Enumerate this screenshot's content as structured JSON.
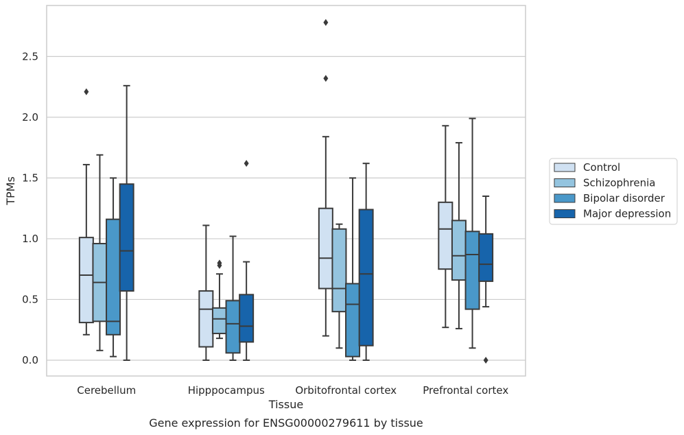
{
  "chart_data": {
    "type": "boxplot",
    "title": "",
    "caption": "Gene expression for ENSG00000279611 by tissue",
    "xlabel": "Tissue",
    "ylabel": "TPMs",
    "ylim": [
      -0.13,
      2.92
    ],
    "yticks": [
      0.0,
      0.5,
      1.0,
      1.5,
      2.0,
      2.5
    ],
    "ytick_labels": [
      "0.0",
      "0.5",
      "1.0",
      "1.5",
      "2.0",
      "2.5"
    ],
    "grid": true,
    "legend_position": "right",
    "categories": [
      "Cerebellum",
      "Hipppocampus",
      "Orbitofrontal cortex",
      "Prefrontal cortex"
    ],
    "series": [
      {
        "name": "Control",
        "color": "#d0e1f2",
        "boxes": [
          {
            "whislo": 0.21,
            "q1": 0.31,
            "med": 0.7,
            "q3": 1.01,
            "whishi": 1.61,
            "fliers": [
              2.21
            ]
          },
          {
            "whislo": 0.0,
            "q1": 0.11,
            "med": 0.42,
            "q3": 0.57,
            "whishi": 1.11,
            "fliers": []
          },
          {
            "whislo": 0.2,
            "q1": 0.59,
            "med": 0.84,
            "q3": 1.25,
            "whishi": 1.84,
            "fliers": [
              2.32,
              2.78
            ]
          },
          {
            "whislo": 0.27,
            "q1": 0.75,
            "med": 1.08,
            "q3": 1.3,
            "whishi": 1.93,
            "fliers": []
          }
        ]
      },
      {
        "name": "Schizophrenia",
        "color": "#94c4df",
        "boxes": [
          {
            "whislo": 0.08,
            "q1": 0.32,
            "med": 0.64,
            "q3": 0.96,
            "whishi": 1.69,
            "fliers": []
          },
          {
            "whislo": 0.18,
            "q1": 0.22,
            "med": 0.34,
            "q3": 0.43,
            "whishi": 0.71,
            "fliers": [
              0.78,
              0.8
            ]
          },
          {
            "whislo": 0.1,
            "q1": 0.4,
            "med": 0.59,
            "q3": 1.08,
            "whishi": 1.12,
            "fliers": []
          },
          {
            "whislo": 0.26,
            "q1": 0.66,
            "med": 0.86,
            "q3": 1.15,
            "whishi": 1.79,
            "fliers": []
          }
        ]
      },
      {
        "name": "Bipolar disorder",
        "color": "#4a98c9",
        "boxes": [
          {
            "whislo": 0.03,
            "q1": 0.21,
            "med": 0.32,
            "q3": 1.16,
            "whishi": 1.5,
            "fliers": []
          },
          {
            "whislo": 0.0,
            "q1": 0.06,
            "med": 0.3,
            "q3": 0.49,
            "whishi": 1.02,
            "fliers": []
          },
          {
            "whislo": 0.0,
            "q1": 0.03,
            "med": 0.46,
            "q3": 0.63,
            "whishi": 1.5,
            "fliers": []
          },
          {
            "whislo": 0.1,
            "q1": 0.42,
            "med": 0.87,
            "q3": 1.06,
            "whishi": 1.99,
            "fliers": []
          }
        ]
      },
      {
        "name": "Major depression",
        "color": "#1764ab",
        "boxes": [
          {
            "whislo": 0.0,
            "q1": 0.57,
            "med": 0.9,
            "q3": 1.45,
            "whishi": 2.26,
            "fliers": []
          },
          {
            "whislo": 0.0,
            "q1": 0.15,
            "med": 0.28,
            "q3": 0.54,
            "whishi": 0.81,
            "fliers": [
              1.62
            ]
          },
          {
            "whislo": 0.0,
            "q1": 0.12,
            "med": 0.71,
            "q3": 1.24,
            "whishi": 1.62,
            "fliers": []
          },
          {
            "whislo": 0.44,
            "q1": 0.65,
            "med": 0.79,
            "q3": 1.04,
            "whishi": 1.35,
            "fliers": [
              0.0
            ]
          }
        ]
      }
    ]
  }
}
